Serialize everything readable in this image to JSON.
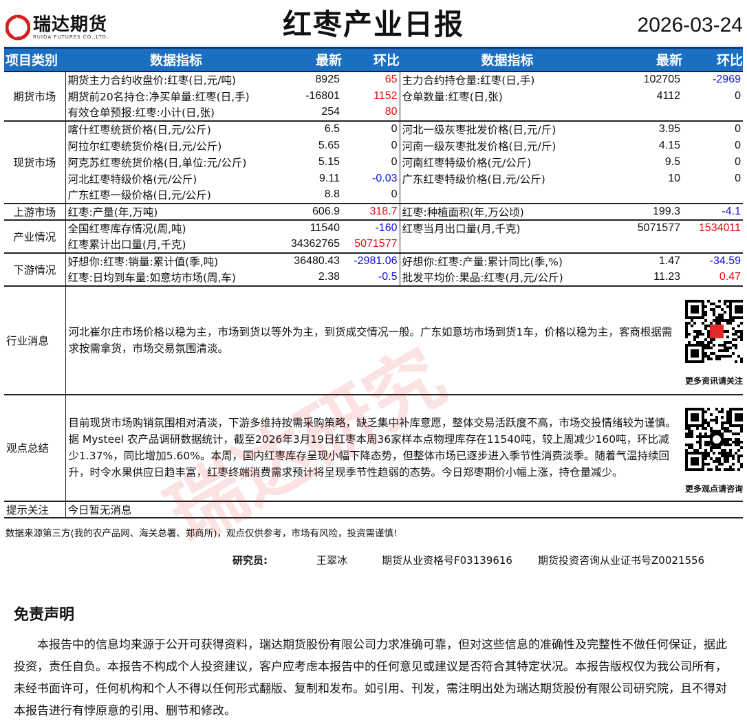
{
  "header": {
    "logo_cn": "瑞达期货",
    "logo_en": "RUIDA FUTURES CO.,LTD.",
    "title": "红枣产业日报",
    "date": "2026-03-24"
  },
  "columns": {
    "category": "项目类别",
    "indicator": "数据指标",
    "latest": "最新",
    "change": "环比"
  },
  "colors": {
    "header_bg": "#1a6fc2",
    "up": "#e01010",
    "down": "#1010e0"
  },
  "sections": [
    {
      "category": "期货市场",
      "rows": [
        [
          "期货主力合约收盘价:红枣(日,元/吨)",
          "8925",
          "65",
          "主力合约持仓量:红枣(日,手)",
          "102705",
          "-2969"
        ],
        [
          "期货前20名持仓:净买单量:红枣(日,手)",
          "-16801",
          "1152",
          "仓单数量:红枣(日,张)",
          "4112",
          "0"
        ],
        [
          "有效仓单预报:红枣:小计(日,张)",
          "254",
          "80",
          "",
          "",
          ""
        ]
      ]
    },
    {
      "category": "现货市场",
      "rows": [
        [
          "喀什红枣统货价格(日,元/公斤)",
          "6.5",
          "0",
          "河北一级灰枣批发价格(日,元/斤)",
          "3.95",
          "0"
        ],
        [
          "阿拉尔红枣统货价格(日,元/公斤)",
          "5.65",
          "0",
          "河南一级灰枣批发价格(日,元/斤)",
          "4.15",
          "0"
        ],
        [
          "阿克苏红枣统货价格(日,单位:元/公斤)",
          "5.15",
          "0",
          "河南红枣特级价格(元/公斤)",
          "9.5",
          "0"
        ],
        [
          "河北红枣特级价格(元/公斤)",
          "9.11",
          "-0.03",
          "广东红枣特级价格(日,元/公斤)",
          "10",
          "0"
        ],
        [
          "广东红枣一级价格(日,元/公斤)",
          "8.8",
          "0",
          "",
          "",
          ""
        ]
      ]
    },
    {
      "category": "上游市场",
      "rows": [
        [
          "红枣:产量(年,万吨)",
          "606.9",
          "318.7",
          "红枣:种植面积(年,万公顷)",
          "199.3",
          "-4.1"
        ]
      ]
    },
    {
      "category": "产业情况",
      "rows": [
        [
          "全国红枣库存情况(周,吨)",
          "11540",
          "-160",
          "红枣当月出口量(月,千克)",
          "5071577",
          "1534011"
        ],
        [
          "红枣累计出口量(月,千克)",
          "34362765",
          "5071577",
          "",
          "",
          ""
        ]
      ]
    },
    {
      "category": "下游情况",
      "rows": [
        [
          "好想你:红枣:销量:累计值(季,吨)",
          "36480.43",
          "-2981.06",
          "好想你:红枣:产量:累计同比(季,%)",
          "1.47",
          "-34.59"
        ],
        [
          "红枣:日均到车量:如意坊市场(周,车)",
          "2.38",
          "-0.5",
          "批发平均价:果品:红枣(月,元/公斤)",
          "11.23",
          "0.47"
        ]
      ]
    }
  ],
  "news": {
    "category": "行业消息",
    "text": "河北崔尔庄市场价格以稳为主，市场到货以等外为主，到货成交情况一般。广东如意坊市场到货1车，价格以稳为主，客商根据需求按需拿货，市场交易氛围清淡。",
    "qr_caption": "更多资讯请关注!"
  },
  "views": {
    "category": "观点总结",
    "text": "目前现货市场购销氛围相对清淡，下游多维持按需采购策略，缺乏集中补库意愿，整体交易活跃度不高，市场交投情绪较为谨慎。据 Mysteel 农产品调研数据统计，截至2026年3月19日红枣本周36家样本点物理库存在11540吨，较上周减少160吨，环比减少1.37%，同比增加5.60%。本周，国内红枣库存呈现小幅下降态势，但整体市场已逐步进入季节性消费淡季。随着气温持续回升，时令水果供应日趋丰富，红枣终端消费需求预计将呈现季节性趋弱的态势。今日郑枣期价小幅上涨，持仓量减少。",
    "qr_caption": "更多观点请咨询!"
  },
  "tips": {
    "category": "提示关注",
    "text": "今日暂无消息"
  },
  "footer": {
    "note": "数据来源第三方(我的农产品网、海关总署、郑商所)，观点仅供参考，市场有风险，投资需谨慎!",
    "researcher_label": "研究员:",
    "researcher": "王翠冰",
    "license1": "期货从业资格号F03139616",
    "license2": "期货投资咨询从业证书号Z0021556"
  },
  "disclaimer": {
    "title": "免责声明",
    "text": "本报告中的信息均来源于公开可获得资料，瑞达期货股份有限公司力求准确可靠，但对这些信息的准确性及完整性不做任何保证，据此投资，责任自负。本报告不构成个人投资建议，客户应考虑本报告中的任何意见或建议是否符合其特定状况。本报告版权仅为我公司所有，未经书面许可，任何机构和个人不得以任何形式翻版、复制和发布。如引用、刊发，需注明出处为瑞达期货股份有限公司研究院，且不得对本报告进行有悖原意的引用、删节和修改。"
  },
  "watermark": "瑞达研究"
}
